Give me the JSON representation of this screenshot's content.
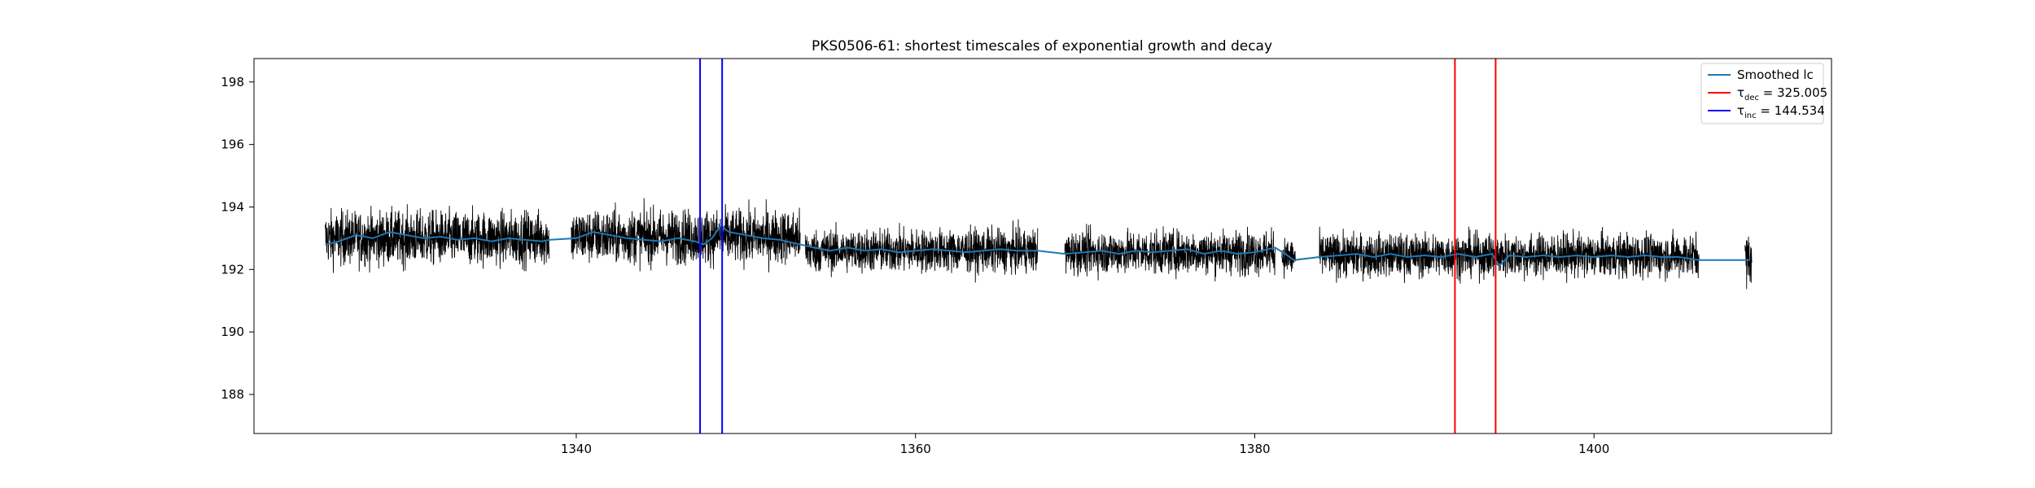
{
  "chart_data": {
    "type": "line",
    "title": "PKS0506-61: shortest timescales of exponential growth and decay",
    "xlabel": "",
    "ylabel": "",
    "xlim": [
      1321,
      1414
    ],
    "ylim": [
      186.75,
      198.75
    ],
    "x_ticks": [
      1340,
      1360,
      1380,
      1400
    ],
    "y_ticks": [
      188,
      190,
      192,
      194,
      196,
      198
    ],
    "grid": false,
    "legend_position": "top-right",
    "series": [
      {
        "name": "Smoothed lc",
        "color": "#1f77b4",
        "type": "line",
        "x": [
          1325.2,
          1326,
          1327,
          1328,
          1329,
          1330,
          1331,
          1332,
          1333,
          1334,
          1335,
          1336,
          1337,
          1338,
          1338.4,
          1340,
          1341,
          1342,
          1343,
          1344,
          1345,
          1346,
          1347,
          1347.5,
          1348,
          1348.5,
          1349,
          1350,
          1351,
          1352,
          1353.2,
          1354,
          1355,
          1356,
          1357,
          1358,
          1359,
          1360,
          1361,
          1362,
          1363,
          1364,
          1365,
          1366,
          1367.2,
          1368.8,
          1370,
          1371,
          1372,
          1373,
          1374,
          1375,
          1376,
          1377,
          1378,
          1379,
          1380,
          1381.2,
          1381.8,
          1382.3,
          1383.8,
          1385,
          1386,
          1387,
          1388,
          1389,
          1390,
          1391,
          1392,
          1393,
          1394,
          1394.4,
          1395,
          1396,
          1397,
          1398,
          1399,
          1400,
          1401,
          1402,
          1403,
          1404,
          1405,
          1406.2,
          1409.2
        ],
        "y": [
          192.8,
          192.9,
          193.1,
          193.0,
          193.2,
          193.1,
          193.0,
          193.05,
          192.95,
          193.0,
          192.9,
          193.0,
          192.95,
          192.9,
          192.95,
          193.0,
          193.2,
          193.1,
          193.0,
          192.95,
          192.9,
          193.0,
          192.9,
          192.8,
          193.0,
          193.4,
          193.2,
          193.1,
          193.0,
          192.95,
          192.8,
          192.7,
          192.6,
          192.7,
          192.6,
          192.65,
          192.55,
          192.6,
          192.65,
          192.6,
          192.55,
          192.6,
          192.65,
          192.6,
          192.6,
          192.5,
          192.55,
          192.6,
          192.5,
          192.6,
          192.55,
          192.6,
          192.65,
          192.5,
          192.6,
          192.5,
          192.55,
          192.7,
          192.5,
          192.3,
          192.4,
          192.45,
          192.5,
          192.4,
          192.5,
          192.4,
          192.45,
          192.4,
          192.5,
          192.4,
          192.5,
          192.1,
          192.45,
          192.4,
          192.45,
          192.4,
          192.45,
          192.4,
          192.45,
          192.4,
          192.45,
          192.4,
          192.4,
          192.3,
          192.3
        ]
      },
      {
        "name": "τdec = 325.005",
        "label_main": "τ",
        "label_sub": "dec",
        "label_rest": " = 325.005",
        "color": "#ff0000",
        "type": "vline",
        "x": [
          1391.8,
          1394.2
        ]
      },
      {
        "name": "τinc = 144.534",
        "label_main": "τ",
        "label_sub": "inc",
        "label_rest": " = 144.534",
        "color": "#0000ff",
        "type": "vline",
        "x": [
          1347.3,
          1348.6
        ]
      }
    ],
    "raw_lc": {
      "color": "#000000",
      "segments": [
        {
          "x_start": 1325.2,
          "x_end": 1338.4,
          "mean": 193.0,
          "spread": 1.0
        },
        {
          "x_start": 1339.7,
          "x_end": 1353.2,
          "mean": 193.05,
          "spread": 1.0
        },
        {
          "x_start": 1353.5,
          "x_end": 1367.2,
          "mean": 192.6,
          "spread": 0.8
        },
        {
          "x_start": 1368.8,
          "x_end": 1381.2,
          "mean": 192.55,
          "spread": 0.8
        },
        {
          "x_start": 1381.6,
          "x_end": 1382.4,
          "mean": 192.4,
          "spread": 0.7
        },
        {
          "x_start": 1383.8,
          "x_end": 1406.2,
          "mean": 192.45,
          "spread": 0.8
        },
        {
          "x_start": 1408.9,
          "x_end": 1409.3,
          "mean": 192.35,
          "spread": 1.0
        }
      ]
    }
  }
}
